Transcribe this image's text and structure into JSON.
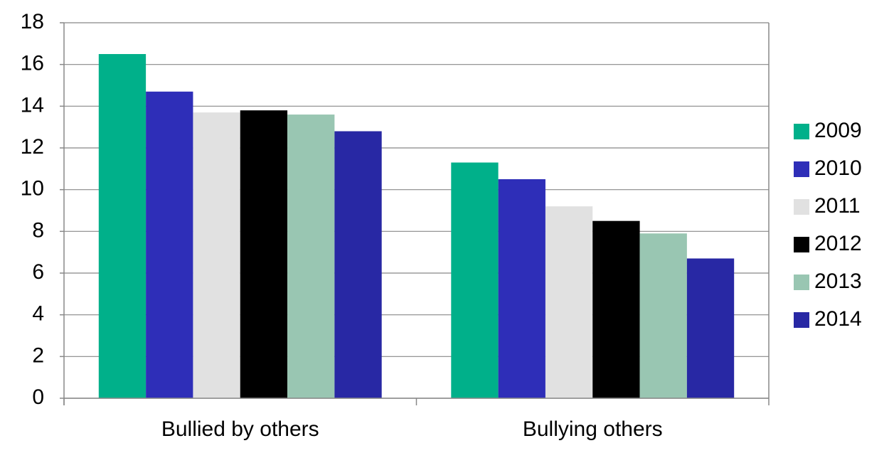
{
  "chart_data": {
    "type": "bar",
    "categories": [
      "Bullied by others",
      "Bullying others"
    ],
    "series": [
      {
        "name": "2009",
        "color": "#00b08a",
        "values": [
          16.5,
          11.3
        ]
      },
      {
        "name": "2010",
        "color": "#2e2eb8",
        "values": [
          14.7,
          10.5
        ]
      },
      {
        "name": "2011",
        "color": "#e1e1e1",
        "values": [
          13.7,
          9.2
        ]
      },
      {
        "name": "2012",
        "color": "#000000",
        "values": [
          13.8,
          8.5
        ]
      },
      {
        "name": "2013",
        "color": "#99c6b2",
        "values": [
          13.6,
          7.9
        ]
      },
      {
        "name": "2014",
        "color": "#2828a4",
        "values": [
          12.8,
          6.7
        ]
      }
    ],
    "ylim": [
      0,
      18
    ],
    "yticks": [
      0,
      2,
      4,
      6,
      8,
      10,
      12,
      14,
      16,
      18
    ],
    "grid": true,
    "legend": "right"
  }
}
